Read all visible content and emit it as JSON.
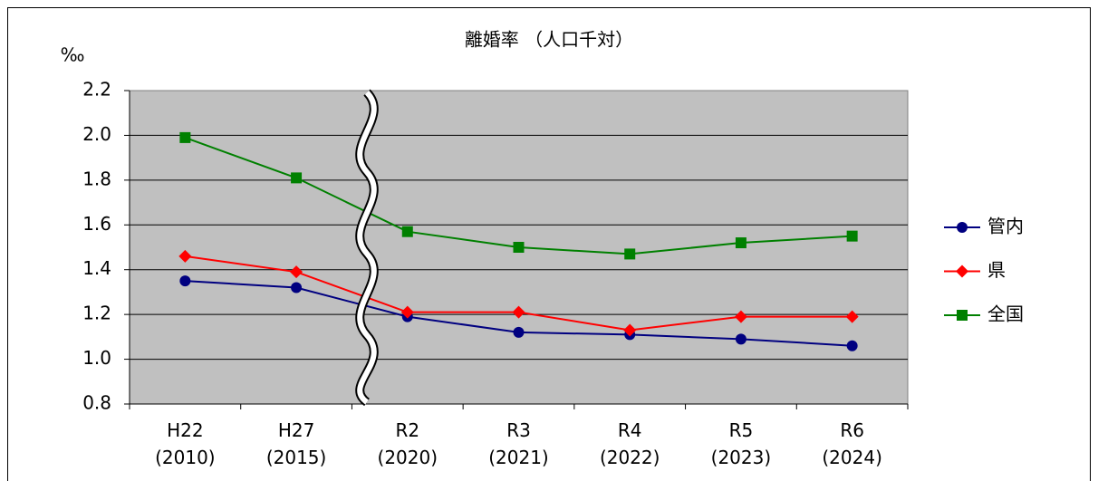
{
  "chart_data": {
    "type": "line",
    "title": "離婚率 （人口千対）",
    "y_label": "‰",
    "categories": [
      "H22\n(2010)",
      "H27\n(2015)",
      "R2\n(2020)",
      "R3\n(2021)",
      "R4\n(2022)",
      "R5\n(2023)",
      "R6\n(2024)"
    ],
    "series": [
      {
        "name": "管内",
        "color": "#000080",
        "marker": "circle",
        "values": [
          1.35,
          1.32,
          1.19,
          1.12,
          1.11,
          1.09,
          1.06
        ]
      },
      {
        "name": "県",
        "color": "#ff0000",
        "marker": "diamond",
        "values": [
          1.46,
          1.39,
          1.21,
          1.21,
          1.13,
          1.19,
          1.19
        ]
      },
      {
        "name": "全国",
        "color": "#008000",
        "marker": "square",
        "values": [
          1.99,
          1.81,
          1.57,
          1.5,
          1.47,
          1.52,
          1.55
        ]
      }
    ],
    "ylim": [
      0.8,
      2.2
    ],
    "yticks": [
      0.8,
      {
        "value": 1,
        "label": "1.0"
      },
      1.2,
      1.4,
      1.6,
      1.8,
      {
        "value": 2,
        "label": "2.0"
      },
      2.2
    ],
    "grid": true,
    "legend": "right"
  }
}
